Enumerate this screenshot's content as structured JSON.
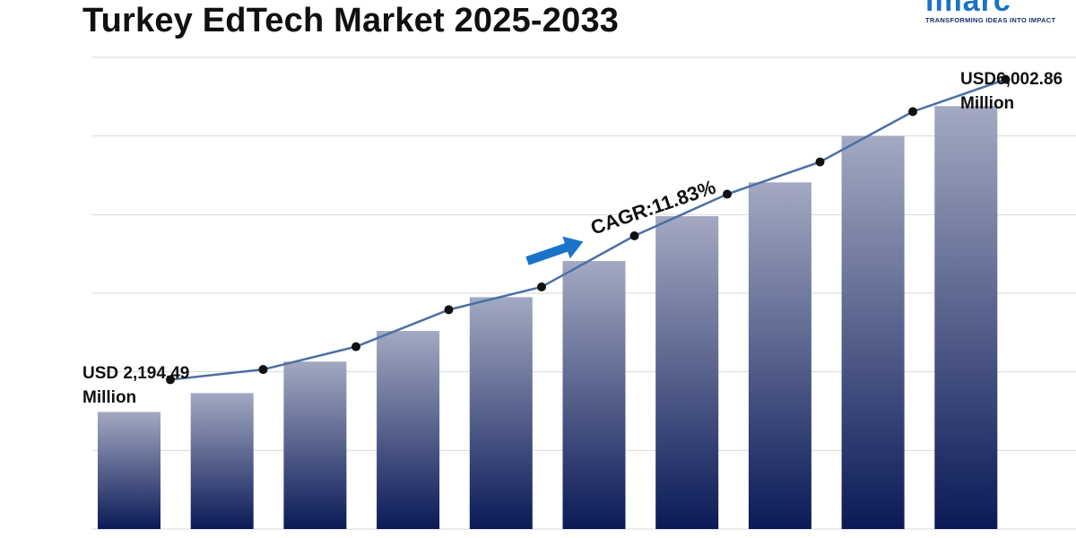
{
  "title": "Turkey EdTech Market 2025-2033",
  "logo": {
    "wordmark": "imarc",
    "tagline": "TRANSFORMING IDEAS INTO IMPACT",
    "brand_color": "#1a73c9",
    "tagline_color": "#1b2f6b"
  },
  "chart_data": {
    "type": "bar",
    "title": "Turkey EdTech Market 2025-2033",
    "xlabel": "",
    "ylabel": "",
    "categories": [
      "",
      "",
      "",
      "",
      "",
      "",
      "",
      "",
      "",
      ""
    ],
    "values": [
      1.49,
      1.73,
      2.13,
      2.52,
      2.95,
      3.41,
      3.98,
      4.41,
      5.0,
      5.38
    ],
    "line_values": [
      1.9,
      2.03,
      2.32,
      2.79,
      3.08,
      3.73,
      4.26,
      4.67,
      5.31,
      5.72
    ],
    "ylim": [
      0,
      6.0
    ],
    "grid": true,
    "bar_gradient": [
      "#a3a9c2",
      "#0b1a57"
    ],
    "line_color": "#4a6fa5",
    "marker_color": "#111111",
    "annotations": {
      "start_value": "USD 2,194.49",
      "start_unit": "Million",
      "end_value": "USD6,002.86",
      "end_unit": "Million",
      "cagr": "CAGR:11.83%",
      "arrow_color": "#1a73c9"
    }
  }
}
